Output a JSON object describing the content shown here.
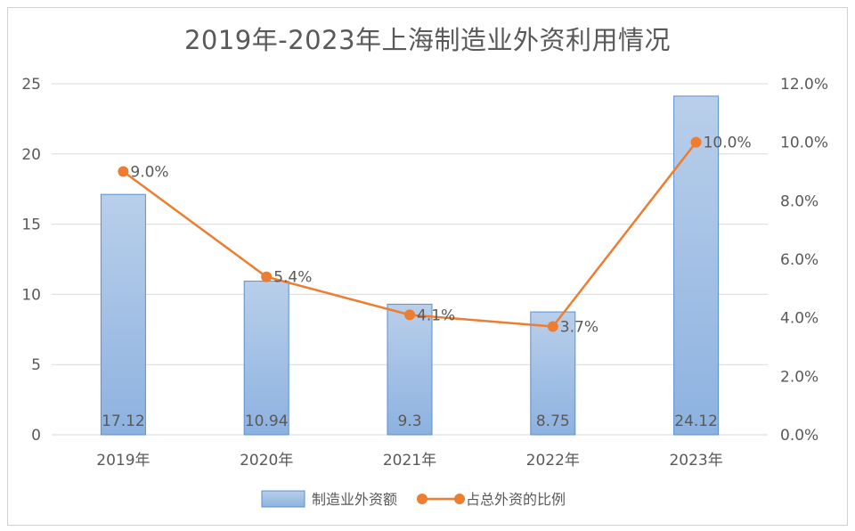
{
  "chart_data": {
    "type": "bar",
    "title": "2019年-2023年上海制造业外资利用情况",
    "categories": [
      "2019年",
      "2020年",
      "2021年",
      "2022年",
      "2023年"
    ],
    "series": [
      {
        "name": "制造业外资额",
        "type": "bar",
        "axis": "left",
        "values": [
          17.12,
          10.94,
          9.3,
          8.75,
          24.12
        ],
        "labels": [
          "17.12",
          "10.94",
          "9.3",
          "8.75",
          "24.12"
        ]
      },
      {
        "name": "占总外资的比例",
        "type": "line",
        "axis": "right",
        "values": [
          9.0,
          5.4,
          4.1,
          3.7,
          10.0
        ],
        "labels": [
          "9.0%",
          "5.4%",
          "4.1%",
          "3.7%",
          "10.0%"
        ]
      }
    ],
    "y_left": {
      "min": 0,
      "max": 25,
      "step": 5,
      "ticks": [
        "0",
        "5",
        "10",
        "15",
        "20",
        "25"
      ]
    },
    "y_right": {
      "min": 0,
      "max": 12,
      "step": 2,
      "ticks": [
        "0.0%",
        "2.0%",
        "4.0%",
        "6.0%",
        "8.0%",
        "10.0%",
        "12.0%"
      ]
    },
    "grid": true,
    "legend": "bottom",
    "colors": {
      "bar_top": "#b9cfea",
      "bar_bottom": "#8db2e0",
      "bar_border": "#5b8fd0",
      "line": "#ed7d31",
      "grid": "#d9d9d9",
      "text": "#595959"
    }
  }
}
